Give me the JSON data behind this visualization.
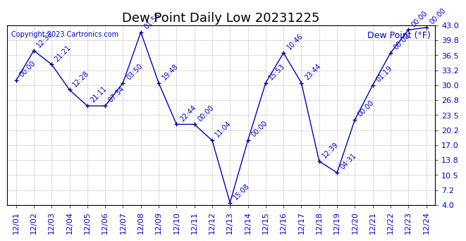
{
  "title": "Dew Point Daily Low 20231225",
  "copyright": "Copyright 2023 Cartronics.com",
  "ylabel": "Dew Point (°F)",
  "ylim": [
    4.0,
    43.0
  ],
  "yticks": [
    4.0,
    7.2,
    10.5,
    13.8,
    17.0,
    20.2,
    23.5,
    26.8,
    30.0,
    33.2,
    36.5,
    39.8,
    43.0
  ],
  "line_color": "#0000cc",
  "marker_color": "#000080",
  "background_color": "#ffffff",
  "grid_color": "#bbbbbb",
  "dates": [
    "12/01",
    "12/02",
    "12/03",
    "12/04",
    "12/05",
    "12/06",
    "12/07",
    "12/08",
    "12/09",
    "12/10",
    "12/11",
    "12/12",
    "12/13",
    "12/14",
    "12/15",
    "12/16",
    "12/17",
    "12/18",
    "12/19",
    "12/20",
    "12/21",
    "12/22",
    "12/23",
    "12/24"
  ],
  "values": [
    31.0,
    37.5,
    34.5,
    29.0,
    25.5,
    25.5,
    30.5,
    41.5,
    30.5,
    21.5,
    21.5,
    18.0,
    4.5,
    18.0,
    30.5,
    37.0,
    30.5,
    13.5,
    11.0,
    22.5,
    30.0,
    37.0,
    42.0,
    42.5
  ],
  "annotations": [
    {
      "idx": 0,
      "label": "00:00"
    },
    {
      "idx": 1,
      "label": "12:33"
    },
    {
      "idx": 2,
      "label": "21:21"
    },
    {
      "idx": 3,
      "label": "12:28"
    },
    {
      "idx": 4,
      "label": "21:11"
    },
    {
      "idx": 5,
      "label": "07:34"
    },
    {
      "idx": 6,
      "label": "03:50"
    },
    {
      "idx": 7,
      "label": "01:56"
    },
    {
      "idx": 8,
      "label": "19:48"
    },
    {
      "idx": 9,
      "label": "22:44"
    },
    {
      "idx": 10,
      "label": "00:00"
    },
    {
      "idx": 11,
      "label": "11:04"
    },
    {
      "idx": 12,
      "label": "15:08"
    },
    {
      "idx": 13,
      "label": "00:00"
    },
    {
      "idx": 14,
      "label": "15:53"
    },
    {
      "idx": 15,
      "label": "10:46"
    },
    {
      "idx": 16,
      "label": "23:44"
    },
    {
      "idx": 17,
      "label": "12:39"
    },
    {
      "idx": 18,
      "label": "04:31"
    },
    {
      "idx": 19,
      "label": "00:00"
    },
    {
      "idx": 20,
      "label": "01:19"
    },
    {
      "idx": 21,
      "label": "00:00"
    },
    {
      "idx": 22,
      "label": "00:00"
    },
    {
      "idx": 23,
      "label": "00:00"
    }
  ],
  "title_fontsize": 13,
  "tick_fontsize": 8,
  "annot_fontsize": 7,
  "copyright_fontsize": 7,
  "ylabel_fontsize": 9
}
